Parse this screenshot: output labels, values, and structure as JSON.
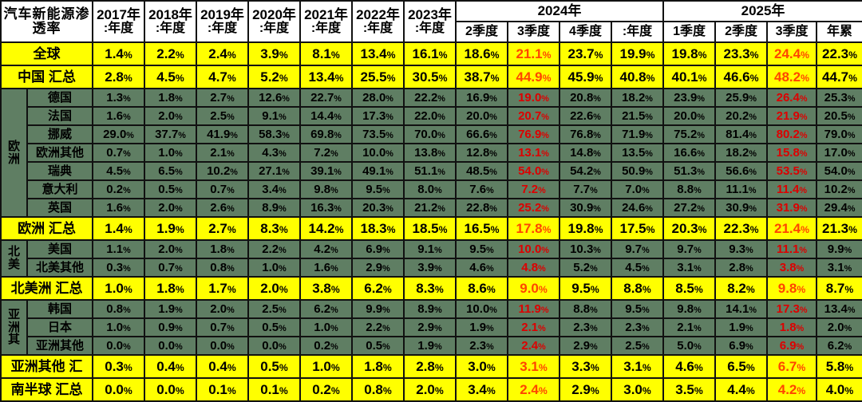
{
  "colors": {
    "summary_row_bg": "#ffff00",
    "country_row_bg": "#5f7e63",
    "header_bg": "#ffffff",
    "border": "#111111",
    "red_on_green": "#dd0000",
    "red_on_yellow": "#ff4500"
  },
  "table": {
    "title_line1": "汽车新能源渗",
    "title_line2": "透率",
    "single_year_columns": [
      {
        "year": "2017年",
        "period": ":年度"
      },
      {
        "year": "2018年",
        "period": ":年度"
      },
      {
        "year": "2019年",
        "period": ":年度"
      },
      {
        "year": "2020年",
        "period": ":年度"
      },
      {
        "year": "2021年",
        "period": ":年度"
      },
      {
        "year": "2022年",
        "period": ":年度"
      },
      {
        "year": "2023年",
        "period": ":年度"
      }
    ],
    "group_columns": [
      {
        "year": "2024年",
        "subs": [
          "2季度",
          "3季度",
          "4季度",
          ":年度"
        ]
      },
      {
        "year": "2025年",
        "subs": [
          "1季度",
          "2季度",
          "3季度",
          "年累"
        ]
      }
    ],
    "red_value_columns": [
      8,
      13
    ],
    "rows": [
      {
        "t": "sum",
        "label": "全球",
        "v": [
          "1.4%",
          "2.2%",
          "2.4%",
          "3.9%",
          "8.1%",
          "13.4%",
          "16.1%",
          "18.6%",
          "21.1%",
          "23.7%",
          "19.9%",
          "19.8%",
          "23.3%",
          "24.4%",
          "22.3%"
        ]
      },
      {
        "t": "sum",
        "label": "中国 汇总",
        "v": [
          "2.8%",
          "4.5%",
          "4.7%",
          "5.2%",
          "13.4%",
          "25.5%",
          "30.5%",
          "38.7%",
          "44.9%",
          "45.9%",
          "40.8%",
          "40.1%",
          "46.6%",
          "48.2%",
          "44.7%"
        ]
      },
      {
        "t": "c",
        "sec": "欧洲",
        "secspan": 7,
        "label": "德国",
        "v": [
          "1.3%",
          "1.8%",
          "2.7%",
          "12.6%",
          "22.7%",
          "28.0%",
          "22.2%",
          "16.9%",
          "19.0%",
          "20.8%",
          "18.2%",
          "23.9%",
          "25.9%",
          "26.4%",
          "25.3%"
        ]
      },
      {
        "t": "c",
        "label": "法国",
        "v": [
          "1.6%",
          "2.0%",
          "2.5%",
          "9.1%",
          "14.4%",
          "17.3%",
          "22.0%",
          "20.0%",
          "20.7%",
          "22.6%",
          "21.5%",
          "20.0%",
          "20.2%",
          "21.9%",
          "20.5%"
        ]
      },
      {
        "t": "c",
        "label": "挪威",
        "v": [
          "29.0%",
          "37.7%",
          "41.9%",
          "58.3%",
          "69.8%",
          "73.5%",
          "70.0%",
          "66.6%",
          "76.9%",
          "76.8%",
          "71.9%",
          "75.2%",
          "81.4%",
          "80.2%",
          "79.0%"
        ]
      },
      {
        "t": "c",
        "label": "欧洲其他",
        "v": [
          "0.7%",
          "1.0%",
          "2.1%",
          "4.3%",
          "7.2%",
          "10.0%",
          "13.8%",
          "12.8%",
          "13.1%",
          "14.8%",
          "13.5%",
          "16.6%",
          "18.2%",
          "15.8%",
          "17.0%"
        ]
      },
      {
        "t": "c",
        "label": "瑞典",
        "v": [
          "4.5%",
          "6.5%",
          "10.2%",
          "27.1%",
          "39.1%",
          "49.1%",
          "51.1%",
          "48.5%",
          "54.0%",
          "54.2%",
          "50.9%",
          "51.3%",
          "56.6%",
          "53.5%",
          "54.0%"
        ]
      },
      {
        "t": "c",
        "label": "意大利",
        "v": [
          "0.2%",
          "0.5%",
          "0.7%",
          "3.4%",
          "9.8%",
          "9.5%",
          "8.0%",
          "7.6%",
          "7.2%",
          "7.7%",
          "7.0%",
          "8.8%",
          "11.1%",
          "11.4%",
          "10.2%"
        ]
      },
      {
        "t": "c",
        "label": "英国",
        "v": [
          "1.6%",
          "2.0%",
          "2.6%",
          "8.9%",
          "16.3%",
          "20.3%",
          "21.2%",
          "22.8%",
          "25.2%",
          "30.9%",
          "24.6%",
          "27.2%",
          "30.9%",
          "31.9%",
          "29.4%"
        ]
      },
      {
        "t": "sum",
        "label": "欧洲 汇总",
        "v": [
          "1.4%",
          "1.9%",
          "2.7%",
          "8.3%",
          "14.2%",
          "18.3%",
          "18.5%",
          "16.5%",
          "17.8%",
          "19.8%",
          "17.5%",
          "20.3%",
          "22.3%",
          "21.4%",
          "21.3%"
        ]
      },
      {
        "t": "c",
        "sec": "北美",
        "secspan": 2,
        "label": "美国",
        "v": [
          "1.1%",
          "2.0%",
          "1.8%",
          "2.2%",
          "4.2%",
          "6.9%",
          "9.1%",
          "9.5%",
          "10.0%",
          "10.3%",
          "9.7%",
          "9.7%",
          "9.3%",
          "11.1%",
          "9.9%"
        ]
      },
      {
        "t": "c",
        "label": "北美其他",
        "v": [
          "0.3%",
          "0.7%",
          "0.8%",
          "1.0%",
          "1.6%",
          "2.9%",
          "3.9%",
          "4.6%",
          "4.8%",
          "5.2%",
          "4.5%",
          "3.1%",
          "2.8%",
          "3.8%",
          "3.1%"
        ]
      },
      {
        "t": "sum",
        "label": "北美洲 汇总",
        "v": [
          "1.0%",
          "1.8%",
          "1.7%",
          "2.0%",
          "3.8%",
          "6.2%",
          "8.3%",
          "8.6%",
          "9.0%",
          "9.5%",
          "8.8%",
          "8.5%",
          "8.2%",
          "9.8%",
          "8.7%"
        ]
      },
      {
        "t": "c",
        "sec": "亚洲其",
        "secspan": 3,
        "label": "韩国",
        "v": [
          "0.8%",
          "1.9%",
          "2.0%",
          "2.5%",
          "6.2%",
          "9.9%",
          "8.9%",
          "10.0%",
          "11.9%",
          "8.8%",
          "9.5%",
          "9.8%",
          "14.1%",
          "17.3%",
          "13.4%"
        ]
      },
      {
        "t": "c",
        "label": "日本",
        "v": [
          "1.0%",
          "0.9%",
          "0.7%",
          "0.5%",
          "1.0%",
          "2.2%",
          "2.9%",
          "1.9%",
          "2.1%",
          "2.3%",
          "2.3%",
          "2.1%",
          "1.9%",
          "1.8%",
          "2.0%"
        ]
      },
      {
        "t": "c",
        "label": "亚洲其他",
        "v": [
          "0.0%",
          "0.0%",
          "0.0%",
          "0.0%",
          "0.2%",
          "0.5%",
          "1.9%",
          "2.3%",
          "2.4%",
          "2.9%",
          "2.5%",
          "5.0%",
          "6.9%",
          "6.9%",
          "6.2%"
        ]
      },
      {
        "t": "sum",
        "label": "亚洲其他 汇",
        "v": [
          "0.3%",
          "0.4%",
          "0.4%",
          "0.5%",
          "1.0%",
          "1.8%",
          "2.8%",
          "3.0%",
          "3.1%",
          "3.3%",
          "3.1%",
          "4.6%",
          "6.5%",
          "6.7%",
          "5.8%"
        ]
      },
      {
        "t": "sum",
        "label": "南半球 汇总",
        "v": [
          "0.0%",
          "0.0%",
          "0.1%",
          "0.1%",
          "0.2%",
          "0.8%",
          "2.0%",
          "3.4%",
          "2.4%",
          "2.9%",
          "3.0%",
          "3.5%",
          "4.4%",
          "4.2%",
          "4.0%"
        ]
      }
    ]
  }
}
